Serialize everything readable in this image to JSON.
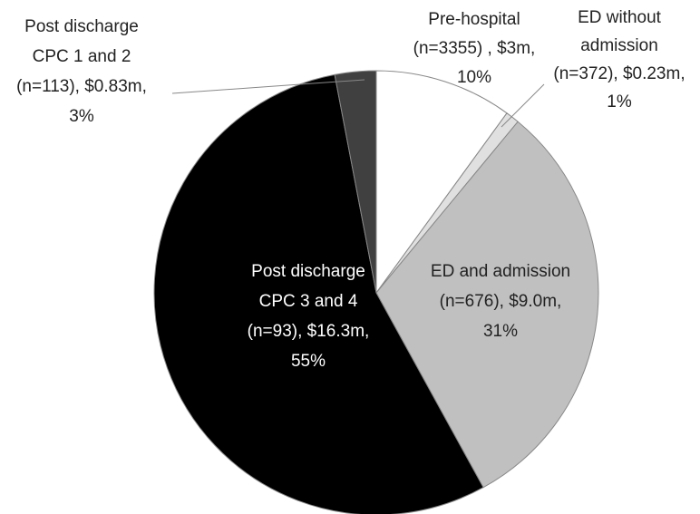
{
  "chart_data": {
    "type": "pie",
    "labels": [
      [
        "Pre-hospital",
        "(n=3355) , $3m,",
        "10%"
      ],
      [
        "ED without",
        "admission",
        "(n=372), $0.23m,",
        "1%"
      ],
      [
        "ED and admission",
        "(n=676), $9.0m,",
        "31%"
      ],
      [
        "Post discharge",
        "CPC 3 and 4",
        "(n=93), $16.3m,",
        "55%"
      ],
      [
        "Post discharge",
        "CPC 1 and 2",
        "(n=113), $0.83m,",
        "3%"
      ]
    ],
    "values": [
      10,
      1,
      31,
      55,
      3
    ],
    "colors": [
      "#ffffff",
      "#e0e0e0",
      "#c0c0c0",
      "#000000",
      "#404040"
    ]
  }
}
